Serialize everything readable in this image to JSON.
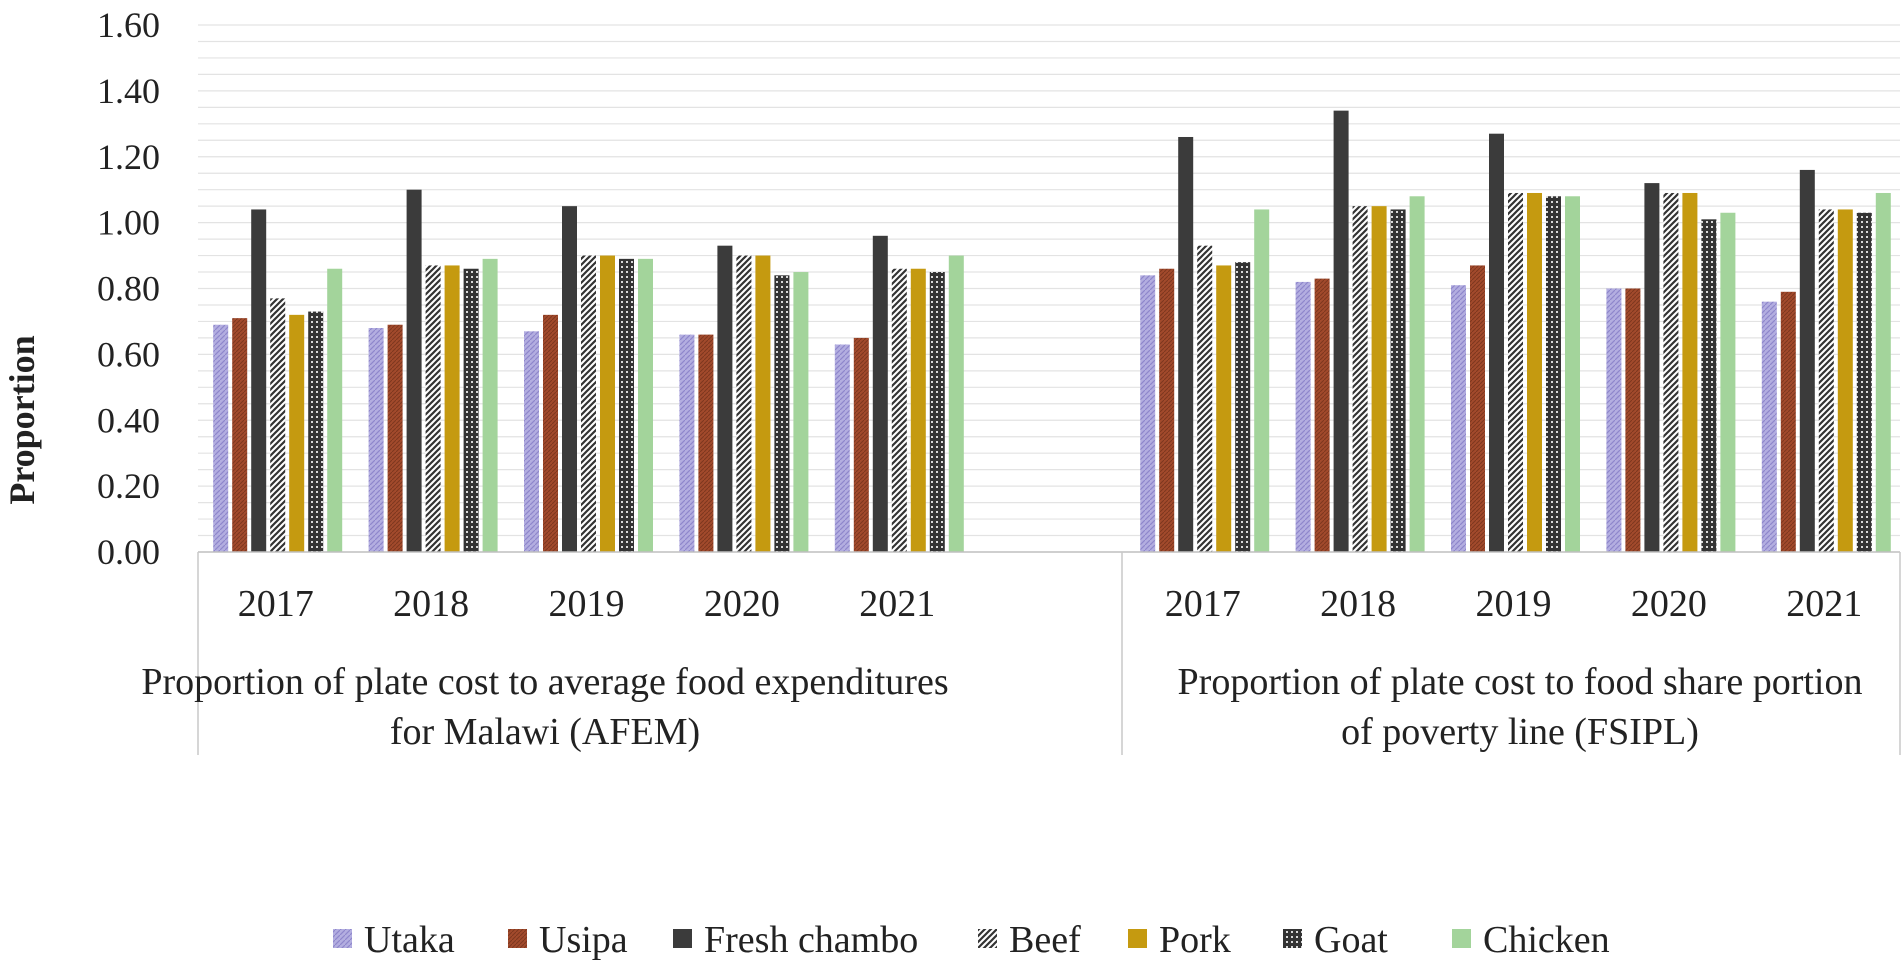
{
  "chart_data": {
    "type": "bar",
    "title": "",
    "ylabel": "Proportion",
    "xlabel": "",
    "ylim": [
      0,
      1.6
    ],
    "yticks": [
      "0.00",
      "0.20",
      "0.40",
      "0.60",
      "0.80",
      "1.00",
      "1.20",
      "1.40",
      "1.60"
    ],
    "grid": true,
    "legend_position": "bottom",
    "groups": [
      {
        "label_lines": [
          "Proportion of plate cost to average food expenditures",
          "for Malawi (AFEM)"
        ],
        "categories": [
          "2017",
          "2018",
          "2019",
          "2020",
          "2021"
        ],
        "series": [
          {
            "name": "Utaka",
            "values": [
              0.69,
              0.68,
              0.67,
              0.66,
              0.63
            ]
          },
          {
            "name": "Usipa",
            "values": [
              0.71,
              0.69,
              0.72,
              0.66,
              0.65
            ]
          },
          {
            "name": "Fresh chambo",
            "values": [
              1.04,
              1.1,
              1.05,
              0.93,
              0.96
            ]
          },
          {
            "name": "Beef",
            "values": [
              0.77,
              0.87,
              0.9,
              0.9,
              0.86
            ]
          },
          {
            "name": "Pork",
            "values": [
              0.72,
              0.87,
              0.9,
              0.9,
              0.86
            ]
          },
          {
            "name": "Goat",
            "values": [
              0.73,
              0.86,
              0.89,
              0.84,
              0.85
            ]
          },
          {
            "name": "Chicken",
            "values": [
              0.86,
              0.89,
              0.89,
              0.85,
              0.9
            ]
          }
        ]
      },
      {
        "label_lines": [
          "Proportion of plate cost to food share portion",
          "of poverty line (FSIPL)"
        ],
        "categories": [
          "2017",
          "2018",
          "2019",
          "2020",
          "2021"
        ],
        "series": [
          {
            "name": "Utaka",
            "values": [
              0.84,
              0.82,
              0.81,
              0.8,
              0.76
            ]
          },
          {
            "name": "Usipa",
            "values": [
              0.86,
              0.83,
              0.87,
              0.8,
              0.79
            ]
          },
          {
            "name": "Fresh chambo",
            "values": [
              1.26,
              1.34,
              1.27,
              1.12,
              1.16
            ]
          },
          {
            "name": "Beef",
            "values": [
              0.93,
              1.05,
              1.09,
              1.09,
              1.04
            ]
          },
          {
            "name": "Pork",
            "values": [
              0.87,
              1.05,
              1.09,
              1.09,
              1.04
            ]
          },
          {
            "name": "Goat",
            "values": [
              0.88,
              1.04,
              1.08,
              1.01,
              1.03
            ]
          },
          {
            "name": "Chicken",
            "values": [
              1.04,
              1.08,
              1.08,
              1.03,
              1.09
            ]
          }
        ]
      }
    ],
    "legend": [
      {
        "name": "Utaka",
        "pattern": "utaka"
      },
      {
        "name": "Usipa",
        "pattern": "usipa"
      },
      {
        "name": "Fresh chambo",
        "pattern": "chambo"
      },
      {
        "name": "Beef",
        "pattern": "beef"
      },
      {
        "name": "Pork",
        "pattern": "pork"
      },
      {
        "name": "Goat",
        "pattern": "goat"
      },
      {
        "name": "Chicken",
        "pattern": "chicken"
      }
    ],
    "colors": {
      "utaka": "#a9a3db",
      "usipa": "#a24a2c",
      "chambo": "#3b3b3b",
      "beef": "#3a3a3a",
      "pork": "#c59a10",
      "goat": "#3a3a3a",
      "chicken": "#a3d49b"
    }
  }
}
